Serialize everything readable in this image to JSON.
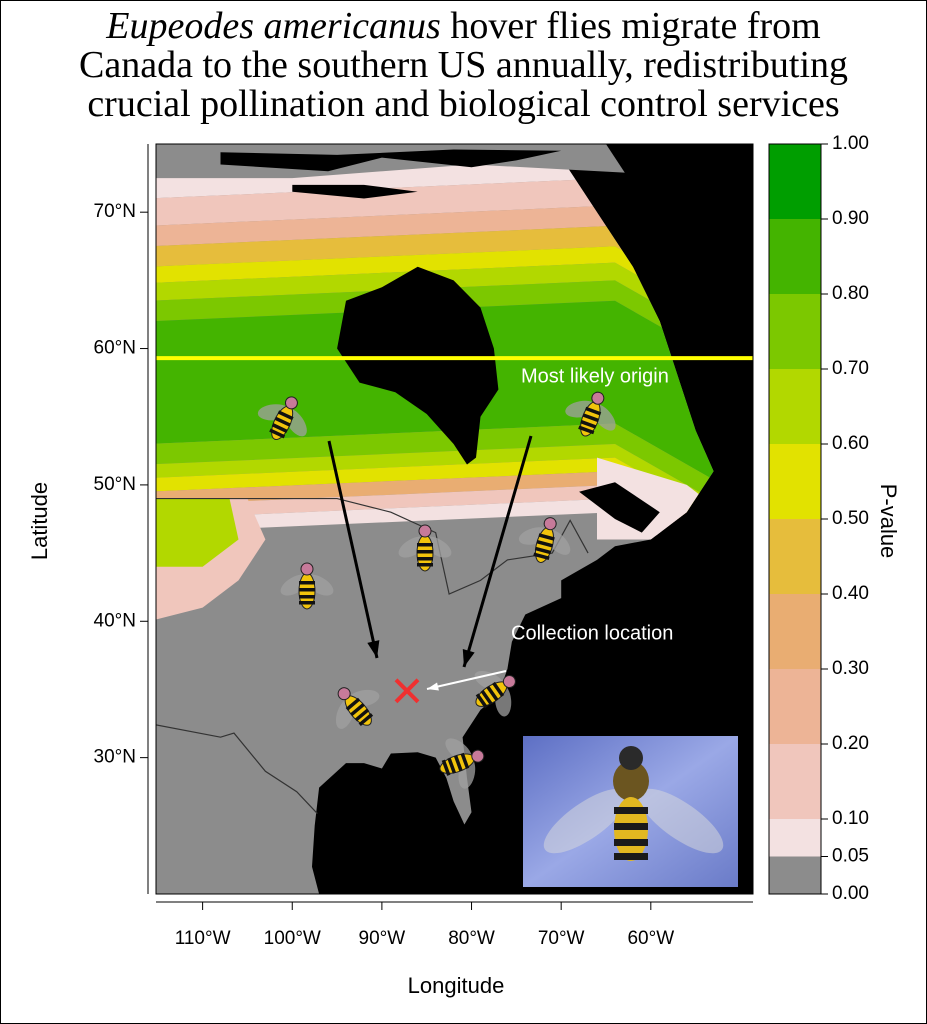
{
  "title": {
    "species": "Eupeodes americanus",
    "lines": [
      "hover flies migrate from",
      "Canada to the southern US annually, redistributing",
      "crucial pollination and biological control services"
    ]
  },
  "map": {
    "xlabel": "Longitude",
    "ylabel": "Latitude",
    "xlim": [
      -115.2,
      -48.6
    ],
    "ylim": [
      20,
      75
    ],
    "xticks": [
      {
        "value": -110,
        "label": "110°W"
      },
      {
        "value": -100,
        "label": "100°W"
      },
      {
        "value": -90,
        "label": "90°W"
      },
      {
        "value": -80,
        "label": "80°W"
      },
      {
        "value": -70,
        "label": "70°W"
      },
      {
        "value": -60,
        "label": "60°W"
      }
    ],
    "yticks": [
      {
        "value": 30,
        "label": "30°N"
      },
      {
        "value": 40,
        "label": "40°N"
      },
      {
        "value": 50,
        "label": "50°N"
      },
      {
        "value": 60,
        "label": "60°N"
      },
      {
        "value": 70,
        "label": "70°N"
      }
    ],
    "origin_latitude": 59.3,
    "origin_label": "Most likely origin",
    "collection_point": {
      "lon": -87.2,
      "lat": 34.9
    },
    "collection_label": "Collection location"
  },
  "colorbar": {
    "label": "P-value",
    "ticks": [
      {
        "value": 0,
        "label": "0.00"
      },
      {
        "value": 0.05,
        "label": "0.05"
      },
      {
        "value": 0.1,
        "label": "0.10"
      },
      {
        "value": 0.2,
        "label": "0.20"
      },
      {
        "value": 0.3,
        "label": "0.30"
      },
      {
        "value": 0.4,
        "label": "0.40"
      },
      {
        "value": 0.5,
        "label": "0.50"
      },
      {
        "value": 0.6,
        "label": "0.60"
      },
      {
        "value": 0.7,
        "label": "0.70"
      },
      {
        "value": 0.8,
        "label": "0.80"
      },
      {
        "value": 0.9,
        "label": "0.90"
      },
      {
        "value": 1,
        "label": "1.00"
      }
    ],
    "colors": [
      "#8c8c8c",
      "#f3e1e1",
      "#f0c6bc",
      "#edb496",
      "#e9ad72",
      "#e6bd3c",
      "#e2e200",
      "#b2d800",
      "#7cc800",
      "#44b400",
      "#009e00"
    ]
  }
}
